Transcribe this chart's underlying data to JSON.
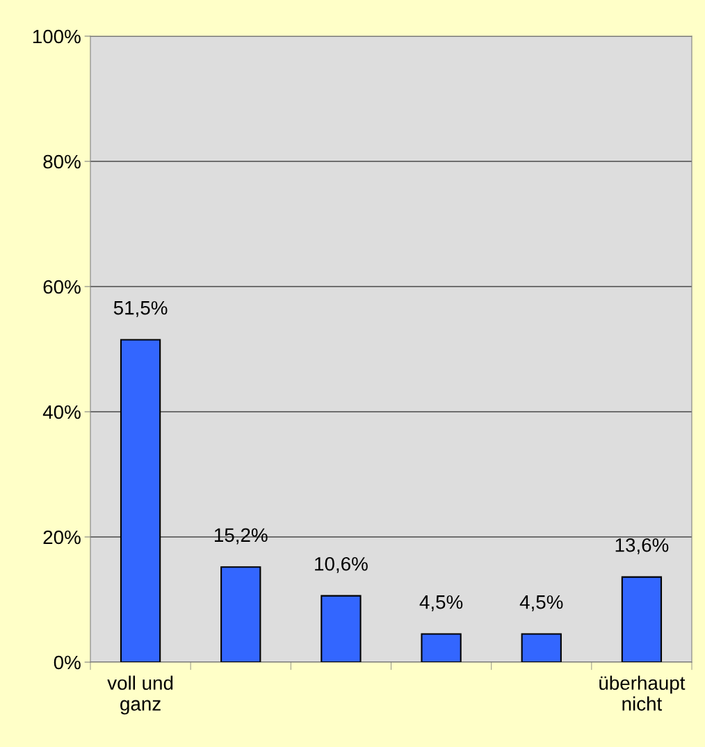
{
  "chart_data": {
    "type": "bar",
    "categories": [
      "voll und\nganz",
      null,
      null,
      null,
      null,
      "überhaupt\nnicht"
    ],
    "values": [
      51.5,
      15.2,
      10.6,
      4.5,
      4.5,
      13.6
    ],
    "value_labels": [
      "51,5%",
      "15,2%",
      "10,6%",
      "4,5%",
      "4,5%",
      "13,6%"
    ],
    "color": "#3366ff",
    "ylim": [
      0,
      100
    ],
    "yticks": [
      {
        "value": 0,
        "label": "0%"
      },
      {
        "value": 20,
        "label": "20%"
      },
      {
        "value": 40,
        "label": "40%"
      },
      {
        "value": 60,
        "label": "60%"
      },
      {
        "value": 80,
        "label": "80%"
      },
      {
        "value": 100,
        "label": "100%"
      }
    ],
    "grid": "y"
  }
}
